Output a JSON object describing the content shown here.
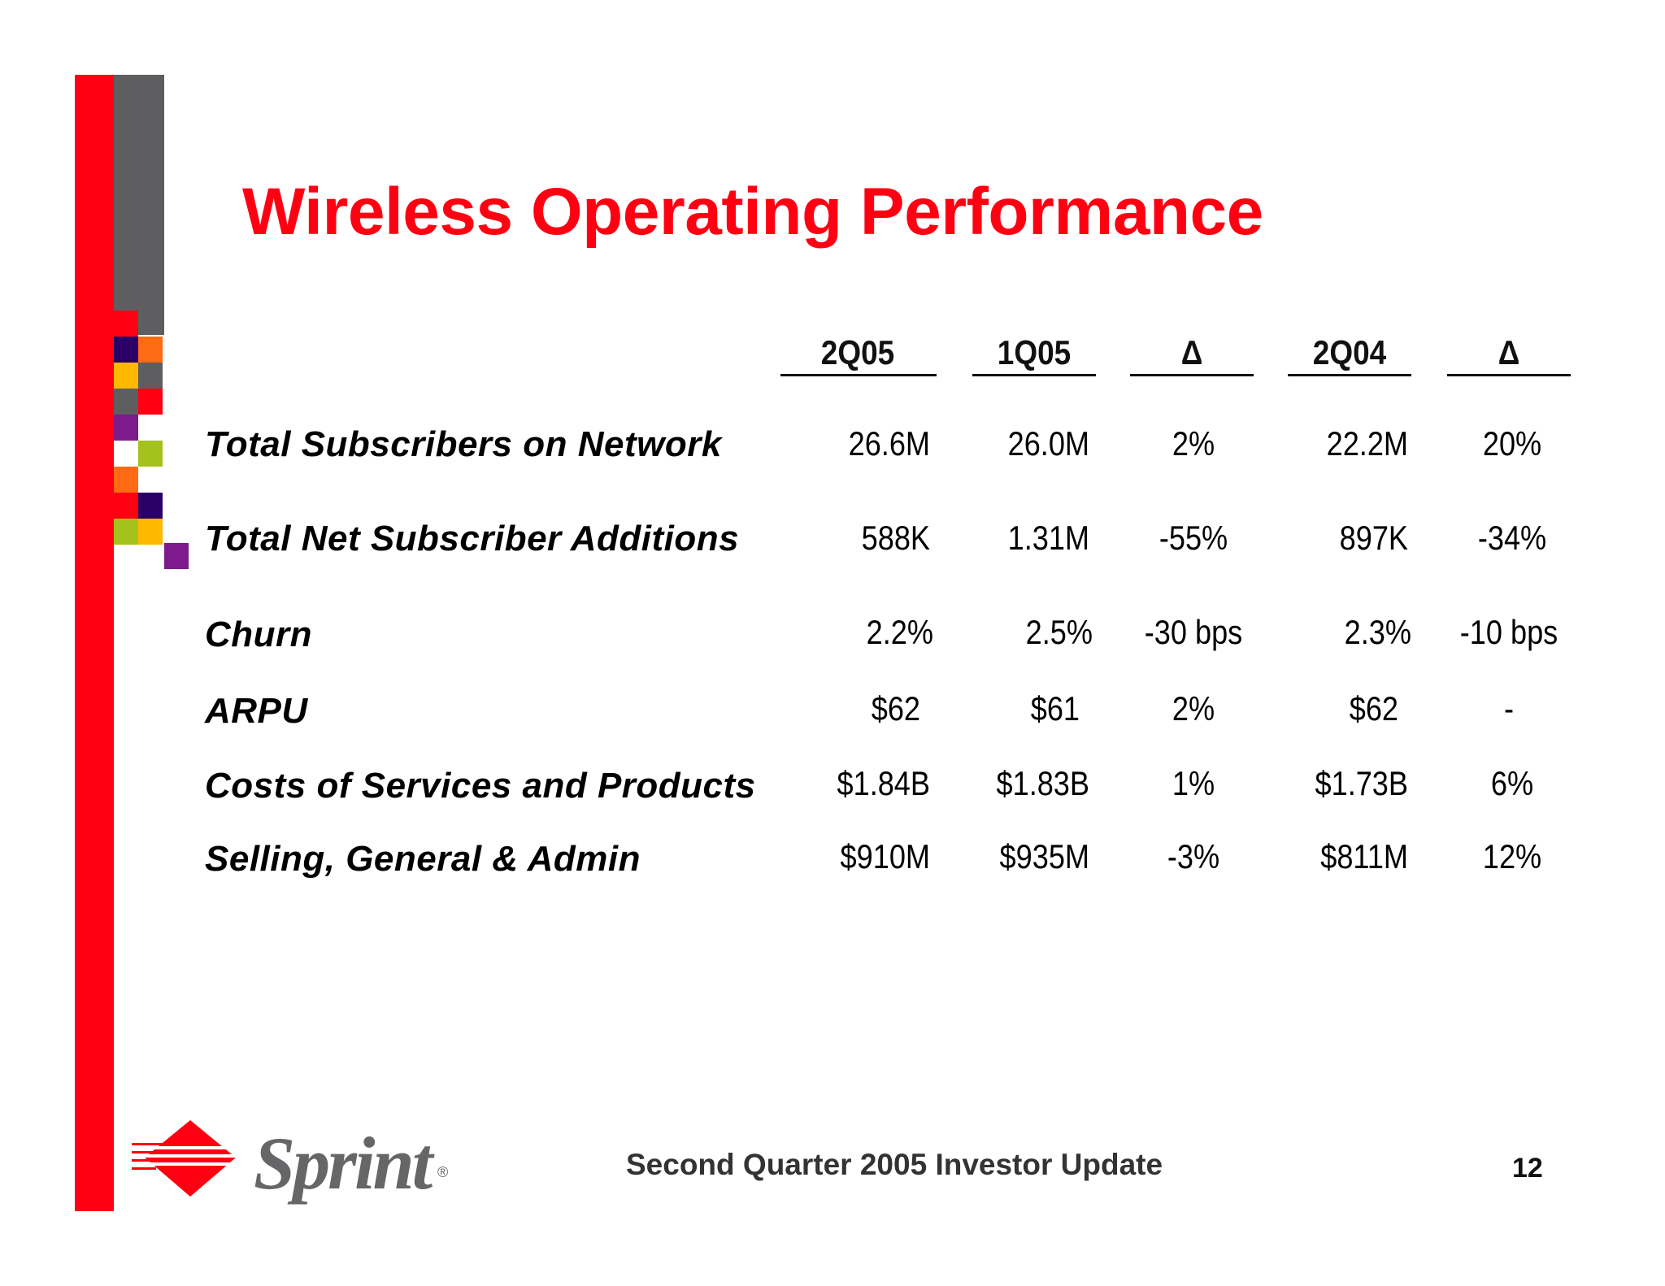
{
  "slide": {
    "title": "Wireless Operating Performance",
    "footer": "Second Quarter 2005 Investor Update",
    "page_number": "12"
  },
  "logo": {
    "word": "Sprint",
    "registered": "®"
  },
  "table": {
    "columns": [
      "2Q05",
      "1Q05",
      "Δ",
      "2Q04",
      "Δ"
    ],
    "rows": [
      {
        "label": "Total Subscribers on Network",
        "values": [
          "26.6M",
          "26.0M",
          "2%",
          "22.2M",
          "20%"
        ]
      },
      {
        "label": "Total Net Subscriber Additions",
        "values": [
          "588K",
          "1.31M",
          "-55%",
          "897K",
          "-34%"
        ]
      },
      {
        "label": "Churn",
        "values": [
          "2.2%",
          "2.5%",
          "-30 bps",
          "2.3%",
          "-10 bps"
        ]
      },
      {
        "label": "ARPU",
        "values": [
          "$62",
          "$61",
          "2%",
          "$62",
          "-"
        ]
      },
      {
        "label": "Costs of Services and Products",
        "values": [
          "$1.84B",
          "$1.83B",
          "1%",
          "$1.73B",
          "6%"
        ]
      },
      {
        "label": "Selling, General  & Admin",
        "values": [
          "$910M",
          "$935M",
          "-3%",
          "$811M",
          "12%"
        ]
      }
    ]
  },
  "colors": {
    "brand_red": "#ff0012",
    "bar_gray": "#5e5e60",
    "navy": "#2a0066",
    "orange": "#ff6a13",
    "yellow": "#ffb800",
    "purple": "#7d1a8c",
    "lime": "#a4c11c"
  }
}
